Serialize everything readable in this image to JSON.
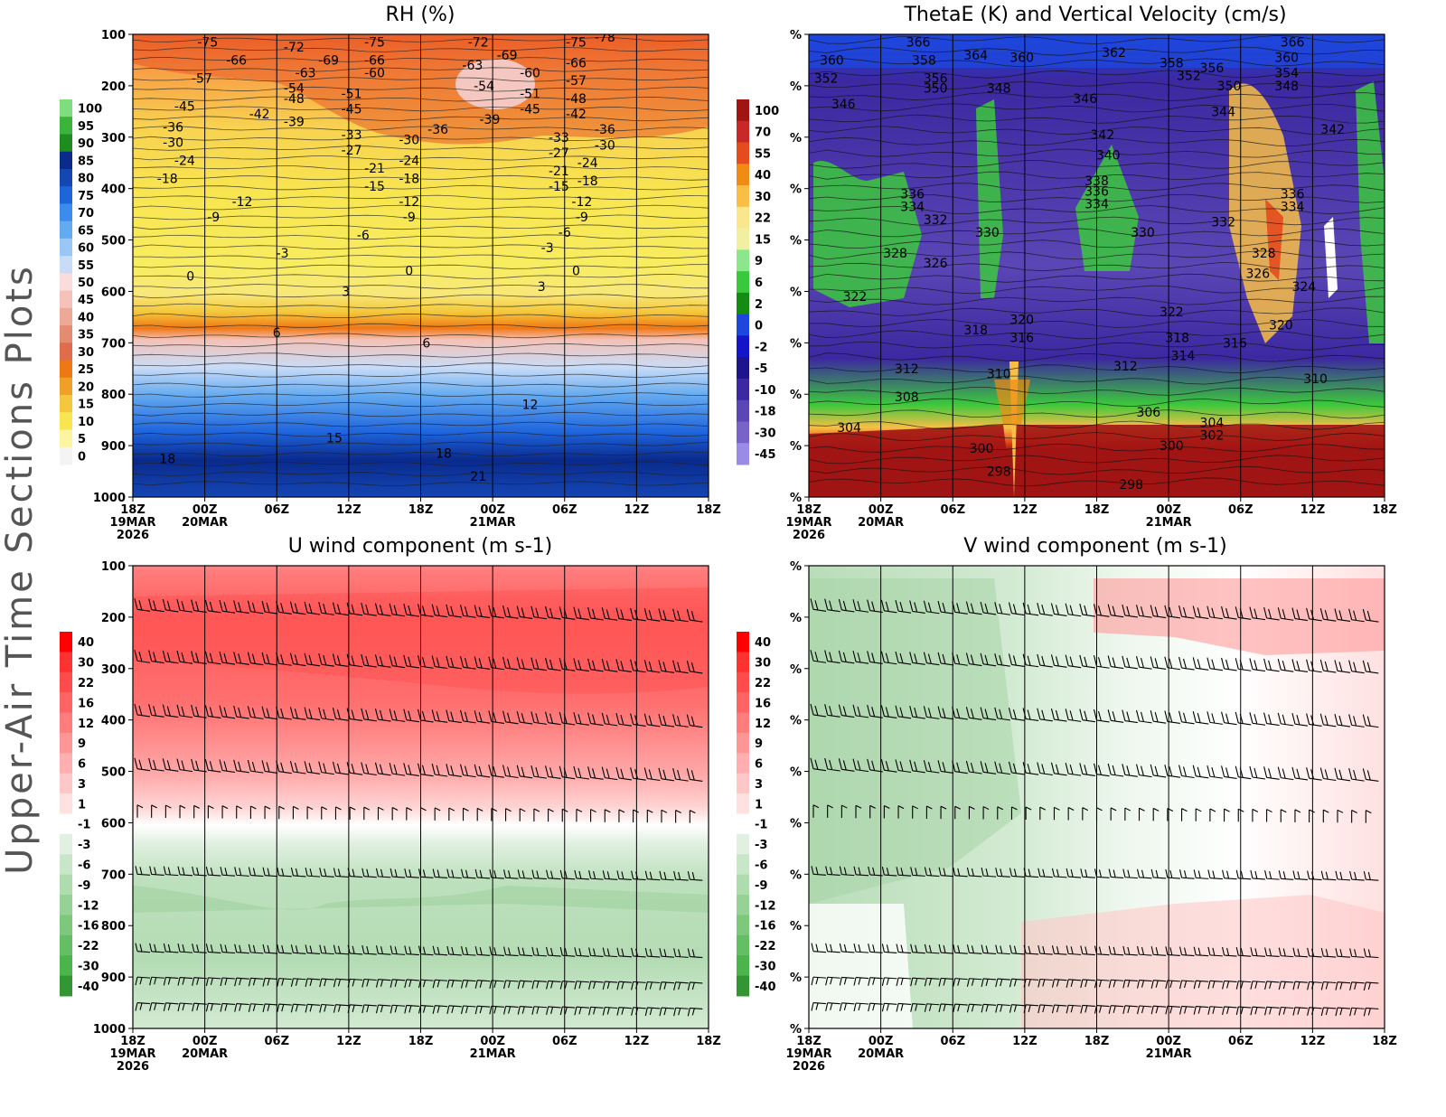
{
  "sidebar_title": "Upper-Air Time Sections Plots",
  "x_axis": {
    "ticks": [
      "18Z",
      "00Z",
      "06Z",
      "12Z",
      "18Z",
      "00Z",
      "06Z",
      "12Z",
      "18Z"
    ],
    "dates": [
      "19MAR",
      "20MAR",
      "",
      "",
      "",
      "21MAR",
      "",
      "",
      ""
    ],
    "year": "2026"
  },
  "chart_data": [
    {
      "id": "rh",
      "type": "heatmap",
      "title": "RH (%)",
      "y_ticks": [
        "100",
        "200",
        "300",
        "400",
        "500",
        "600",
        "700",
        "800",
        "900",
        "1000"
      ],
      "ylim": [
        100,
        1000
      ],
      "colorbar": [
        "100",
        "95",
        "90",
        "85",
        "80",
        "75",
        "70",
        "65",
        "60",
        "55",
        "50",
        "45",
        "40",
        "35",
        "30",
        "25",
        "20",
        "15",
        "10",
        "5",
        "0"
      ],
      "colors": [
        "#7fdc7f",
        "#3cb43c",
        "#1e8c1e",
        "#0a2a8c",
        "#1446b4",
        "#1e64dc",
        "#3c8cf0",
        "#64aaf0",
        "#9ac8f4",
        "#c8dcf8",
        "#fadcdc",
        "#f4c2b8",
        "#ecaa96",
        "#e48c72",
        "#e06c4c",
        "#f07814",
        "#f0a028",
        "#f4c83c",
        "#f8e650",
        "#fcf4a0",
        "#f4f4f4"
      ],
      "contour_labels": [
        {
          "t": 0.13,
          "p": 115,
          "v": "-75"
        },
        {
          "t": 0.28,
          "p": 125,
          "v": "-72"
        },
        {
          "t": 0.18,
          "p": 150,
          "v": "-66"
        },
        {
          "t": 0.12,
          "p": 185,
          "v": "-57"
        },
        {
          "t": 0.34,
          "p": 150,
          "v": "-69"
        },
        {
          "t": 0.42,
          "p": 115,
          "v": "-75"
        },
        {
          "t": 0.42,
          "p": 150,
          "v": "-66"
        },
        {
          "t": 0.42,
          "p": 175,
          "v": "-60"
        },
        {
          "t": 0.3,
          "p": 175,
          "v": "-63"
        },
        {
          "t": 0.28,
          "p": 205,
          "v": "-54"
        },
        {
          "t": 0.28,
          "p": 225,
          "v": "-48"
        },
        {
          "t": 0.38,
          "p": 215,
          "v": "-51"
        },
        {
          "t": 0.38,
          "p": 245,
          "v": "-45"
        },
        {
          "t": 0.09,
          "p": 240,
          "v": "-45"
        },
        {
          "t": 0.22,
          "p": 255,
          "v": "-42"
        },
        {
          "t": 0.28,
          "p": 270,
          "v": "-39"
        },
        {
          "t": 0.07,
          "p": 280,
          "v": "-36"
        },
        {
          "t": 0.07,
          "p": 310,
          "v": "-30"
        },
        {
          "t": 0.09,
          "p": 345,
          "v": "-24"
        },
        {
          "t": 0.06,
          "p": 380,
          "v": "-18"
        },
        {
          "t": 0.38,
          "p": 295,
          "v": "-33"
        },
        {
          "t": 0.38,
          "p": 325,
          "v": "-27"
        },
        {
          "t": 0.48,
          "p": 305,
          "v": "-30"
        },
        {
          "t": 0.48,
          "p": 345,
          "v": "-24"
        },
        {
          "t": 0.48,
          "p": 380,
          "v": "-18"
        },
        {
          "t": 0.42,
          "p": 360,
          "v": "-21"
        },
        {
          "t": 0.42,
          "p": 395,
          "v": "-15"
        },
        {
          "t": 0.48,
          "p": 425,
          "v": "-12"
        },
        {
          "t": 0.48,
          "p": 455,
          "v": "-9"
        },
        {
          "t": 0.53,
          "p": 285,
          "v": "-36"
        },
        {
          "t": 0.6,
          "p": 115,
          "v": "-72"
        },
        {
          "t": 0.65,
          "p": 140,
          "v": "-69"
        },
        {
          "t": 0.59,
          "p": 160,
          "v": "-63"
        },
        {
          "t": 0.61,
          "p": 200,
          "v": "-54"
        },
        {
          "t": 0.69,
          "p": 175,
          "v": "-60"
        },
        {
          "t": 0.69,
          "p": 215,
          "v": "-51"
        },
        {
          "t": 0.69,
          "p": 245,
          "v": "-45"
        },
        {
          "t": 0.62,
          "p": 265,
          "v": "-39"
        },
        {
          "t": 0.77,
          "p": 115,
          "v": "-75"
        },
        {
          "t": 0.82,
          "p": 105,
          "v": "-78"
        },
        {
          "t": 0.77,
          "p": 155,
          "v": "-66"
        },
        {
          "t": 0.77,
          "p": 190,
          "v": "-57"
        },
        {
          "t": 0.77,
          "p": 225,
          "v": "-48"
        },
        {
          "t": 0.77,
          "p": 255,
          "v": "-42"
        },
        {
          "t": 0.74,
          "p": 300,
          "v": "-33"
        },
        {
          "t": 0.74,
          "p": 330,
          "v": "-27"
        },
        {
          "t": 0.74,
          "p": 365,
          "v": "-21"
        },
        {
          "t": 0.74,
          "p": 395,
          "v": "-15"
        },
        {
          "t": 0.82,
          "p": 285,
          "v": "-36"
        },
        {
          "t": 0.82,
          "p": 315,
          "v": "-30"
        },
        {
          "t": 0.79,
          "p": 350,
          "v": "-24"
        },
        {
          "t": 0.79,
          "p": 385,
          "v": "-18"
        },
        {
          "t": 0.78,
          "p": 425,
          "v": "-12"
        },
        {
          "t": 0.78,
          "p": 455,
          "v": "-9"
        },
        {
          "t": 0.19,
          "p": 425,
          "v": "-12"
        },
        {
          "t": 0.14,
          "p": 455,
          "v": "-9"
        },
        {
          "t": 0.4,
          "p": 490,
          "v": "-6"
        },
        {
          "t": 0.75,
          "p": 485,
          "v": "-6"
        },
        {
          "t": 0.26,
          "p": 525,
          "v": "-3"
        },
        {
          "t": 0.72,
          "p": 515,
          "v": "-3"
        },
        {
          "t": 0.1,
          "p": 570,
          "v": "0"
        },
        {
          "t": 0.48,
          "p": 560,
          "v": "0"
        },
        {
          "t": 0.77,
          "p": 560,
          "v": "0"
        },
        {
          "t": 0.37,
          "p": 600,
          "v": "3"
        },
        {
          "t": 0.71,
          "p": 590,
          "v": "3"
        },
        {
          "t": 0.25,
          "p": 680,
          "v": "6"
        },
        {
          "t": 0.51,
          "p": 700,
          "v": "6"
        },
        {
          "t": 0.69,
          "p": 820,
          "v": "12"
        },
        {
          "t": 0.35,
          "p": 885,
          "v": "15"
        },
        {
          "t": 0.06,
          "p": 925,
          "v": "18"
        },
        {
          "t": 0.54,
          "p": 915,
          "v": "18"
        },
        {
          "t": 0.6,
          "p": 960,
          "v": "21"
        }
      ]
    },
    {
      "id": "thetae",
      "type": "heatmap",
      "title": "ThetaE (K) and Vertical Velocity (cm/s)",
      "y_ticks": [
        "%",
        "%",
        "%",
        "%",
        "%",
        "%",
        "%",
        "%",
        "%",
        "%"
      ],
      "colorbar": [
        "100",
        "70",
        "55",
        "40",
        "30",
        "22",
        "15",
        "9",
        "6",
        "2",
        "0",
        "-2",
        "-5",
        "-10",
        "-18",
        "-30",
        "-45"
      ],
      "colors": [
        "#a01414",
        "#c82828",
        "#e64b1e",
        "#f08c14",
        "#f8be46",
        "#fae68c",
        "#f0f0a0",
        "#8ce68c",
        "#3cc83c",
        "#148c14",
        "#1e46dc",
        "#1414c8",
        "#1e148c",
        "#3c28a0",
        "#5a46b4",
        "#7864c8",
        "#9a8ce6"
      ],
      "contour_labels": [
        {
          "t": 0.19,
          "p": 115,
          "v": "366"
        },
        {
          "t": 0.29,
          "p": 140,
          "v": "364"
        },
        {
          "t": 0.37,
          "p": 145,
          "v": "360"
        },
        {
          "t": 0.04,
          "p": 150,
          "v": "360"
        },
        {
          "t": 0.03,
          "p": 185,
          "v": "352"
        },
        {
          "t": 0.2,
          "p": 150,
          "v": "358"
        },
        {
          "t": 0.22,
          "p": 185,
          "v": "356"
        },
        {
          "t": 0.22,
          "p": 205,
          "v": "350"
        },
        {
          "t": 0.33,
          "p": 205,
          "v": "348"
        },
        {
          "t": 0.06,
          "p": 235,
          "v": "346"
        },
        {
          "t": 0.53,
          "p": 135,
          "v": "362"
        },
        {
          "t": 0.63,
          "p": 155,
          "v": "358"
        },
        {
          "t": 0.66,
          "p": 180,
          "v": "352"
        },
        {
          "t": 0.7,
          "p": 165,
          "v": "356"
        },
        {
          "t": 0.73,
          "p": 200,
          "v": "350"
        },
        {
          "t": 0.84,
          "p": 115,
          "v": "366"
        },
        {
          "t": 0.83,
          "p": 145,
          "v": "360"
        },
        {
          "t": 0.83,
          "p": 175,
          "v": "354"
        },
        {
          "t": 0.83,
          "p": 200,
          "v": "348"
        },
        {
          "t": 0.48,
          "p": 225,
          "v": "346"
        },
        {
          "t": 0.72,
          "p": 250,
          "v": "344"
        },
        {
          "t": 0.51,
          "p": 295,
          "v": "342"
        },
        {
          "t": 0.52,
          "p": 335,
          "v": "340"
        },
        {
          "t": 0.91,
          "p": 285,
          "v": "342"
        },
        {
          "t": 0.5,
          "p": 385,
          "v": "338"
        },
        {
          "t": 0.5,
          "p": 405,
          "v": "336"
        },
        {
          "t": 0.5,
          "p": 430,
          "v": "334"
        },
        {
          "t": 0.18,
          "p": 410,
          "v": "336"
        },
        {
          "t": 0.18,
          "p": 435,
          "v": "334"
        },
        {
          "t": 0.84,
          "p": 410,
          "v": "336"
        },
        {
          "t": 0.84,
          "p": 435,
          "v": "334"
        },
        {
          "t": 0.22,
          "p": 460,
          "v": "332"
        },
        {
          "t": 0.72,
          "p": 465,
          "v": "332"
        },
        {
          "t": 0.31,
          "p": 485,
          "v": "330"
        },
        {
          "t": 0.58,
          "p": 485,
          "v": "330"
        },
        {
          "t": 0.15,
          "p": 525,
          "v": "328"
        },
        {
          "t": 0.22,
          "p": 545,
          "v": "326"
        },
        {
          "t": 0.79,
          "p": 525,
          "v": "328"
        },
        {
          "t": 0.78,
          "p": 565,
          "v": "326"
        },
        {
          "t": 0.86,
          "p": 590,
          "v": "324"
        },
        {
          "t": 0.08,
          "p": 610,
          "v": "322"
        },
        {
          "t": 0.63,
          "p": 640,
          "v": "322"
        },
        {
          "t": 0.37,
          "p": 655,
          "v": "320"
        },
        {
          "t": 0.29,
          "p": 675,
          "v": "318"
        },
        {
          "t": 0.37,
          "p": 690,
          "v": "316"
        },
        {
          "t": 0.82,
          "p": 665,
          "v": "320"
        },
        {
          "t": 0.64,
          "p": 690,
          "v": "318"
        },
        {
          "t": 0.74,
          "p": 700,
          "v": "316"
        },
        {
          "t": 0.65,
          "p": 725,
          "v": "314"
        },
        {
          "t": 0.17,
          "p": 750,
          "v": "312"
        },
        {
          "t": 0.55,
          "p": 745,
          "v": "312"
        },
        {
          "t": 0.33,
          "p": 760,
          "v": "310"
        },
        {
          "t": 0.88,
          "p": 770,
          "v": "310"
        },
        {
          "t": 0.17,
          "p": 805,
          "v": "308"
        },
        {
          "t": 0.59,
          "p": 835,
          "v": "306"
        },
        {
          "t": 0.07,
          "p": 865,
          "v": "304"
        },
        {
          "t": 0.7,
          "p": 855,
          "v": "304"
        },
        {
          "t": 0.7,
          "p": 880,
          "v": "302"
        },
        {
          "t": 0.3,
          "p": 905,
          "v": "300"
        },
        {
          "t": 0.63,
          "p": 900,
          "v": "300"
        },
        {
          "t": 0.33,
          "p": 950,
          "v": "298"
        },
        {
          "t": 0.56,
          "p": 975,
          "v": "298"
        }
      ]
    },
    {
      "id": "u_wind",
      "type": "heatmap",
      "title": "U wind component (m s-1)",
      "y_ticks": [
        "100",
        "200",
        "300",
        "400",
        "500",
        "600",
        "700",
        "800",
        "900",
        "1000"
      ],
      "colorbar": [
        "40",
        "30",
        "22",
        "16",
        "12",
        "9",
        "6",
        "3",
        "1",
        "-1",
        "-3",
        "-6",
        "-9",
        "-12",
        "-16",
        "-22",
        "-30",
        "-40"
      ],
      "colors": [
        "#ff0000",
        "#ff3232",
        "#ff4b4b",
        "#ff6464",
        "#ff7d7d",
        "#ff9696",
        "#ffafaf",
        "#ffc8c8",
        "#ffe1e1",
        "#ffffff",
        "#e1f0e1",
        "#c8e6c8",
        "#afdcaf",
        "#96d296",
        "#7dc87d",
        "#64be64",
        "#4bb44b",
        "#329632"
      ],
      "barb_levels": [
        {
          "p": 185,
          "dir": -1,
          "feather": "up"
        },
        {
          "p": 285,
          "dir": -1,
          "feather": "up"
        },
        {
          "p": 390,
          "dir": -1,
          "feather": "up"
        },
        {
          "p": 495,
          "dir": -1,
          "feather": "up"
        },
        {
          "p": 590,
          "dir": 0,
          "feather": "up"
        },
        {
          "p": 700,
          "dir": 1,
          "feather": "up"
        },
        {
          "p": 850,
          "dir": 1,
          "feather": "up"
        },
        {
          "p": 900,
          "dir": 1,
          "feather": "down"
        },
        {
          "p": 950,
          "dir": 1,
          "feather": "down"
        }
      ]
    },
    {
      "id": "v_wind",
      "type": "heatmap",
      "title": "V wind component (m s-1)",
      "y_ticks": [
        "%",
        "%",
        "%",
        "%",
        "%",
        "%",
        "%",
        "%",
        "%",
        "%"
      ],
      "colorbar": [
        "40",
        "30",
        "22",
        "16",
        "12",
        "9",
        "6",
        "3",
        "1",
        "-1",
        "-3",
        "-6",
        "-9",
        "-12",
        "-16",
        "-22",
        "-30",
        "-40"
      ],
      "colors": [
        "#ff0000",
        "#ff3232",
        "#ff4b4b",
        "#ff6464",
        "#ff7d7d",
        "#ff9696",
        "#ffafaf",
        "#ffc8c8",
        "#ffe1e1",
        "#ffffff",
        "#e1f0e1",
        "#c8e6c8",
        "#afdcaf",
        "#96d296",
        "#7dc87d",
        "#64be64",
        "#4bb44b",
        "#329632"
      ]
    }
  ]
}
